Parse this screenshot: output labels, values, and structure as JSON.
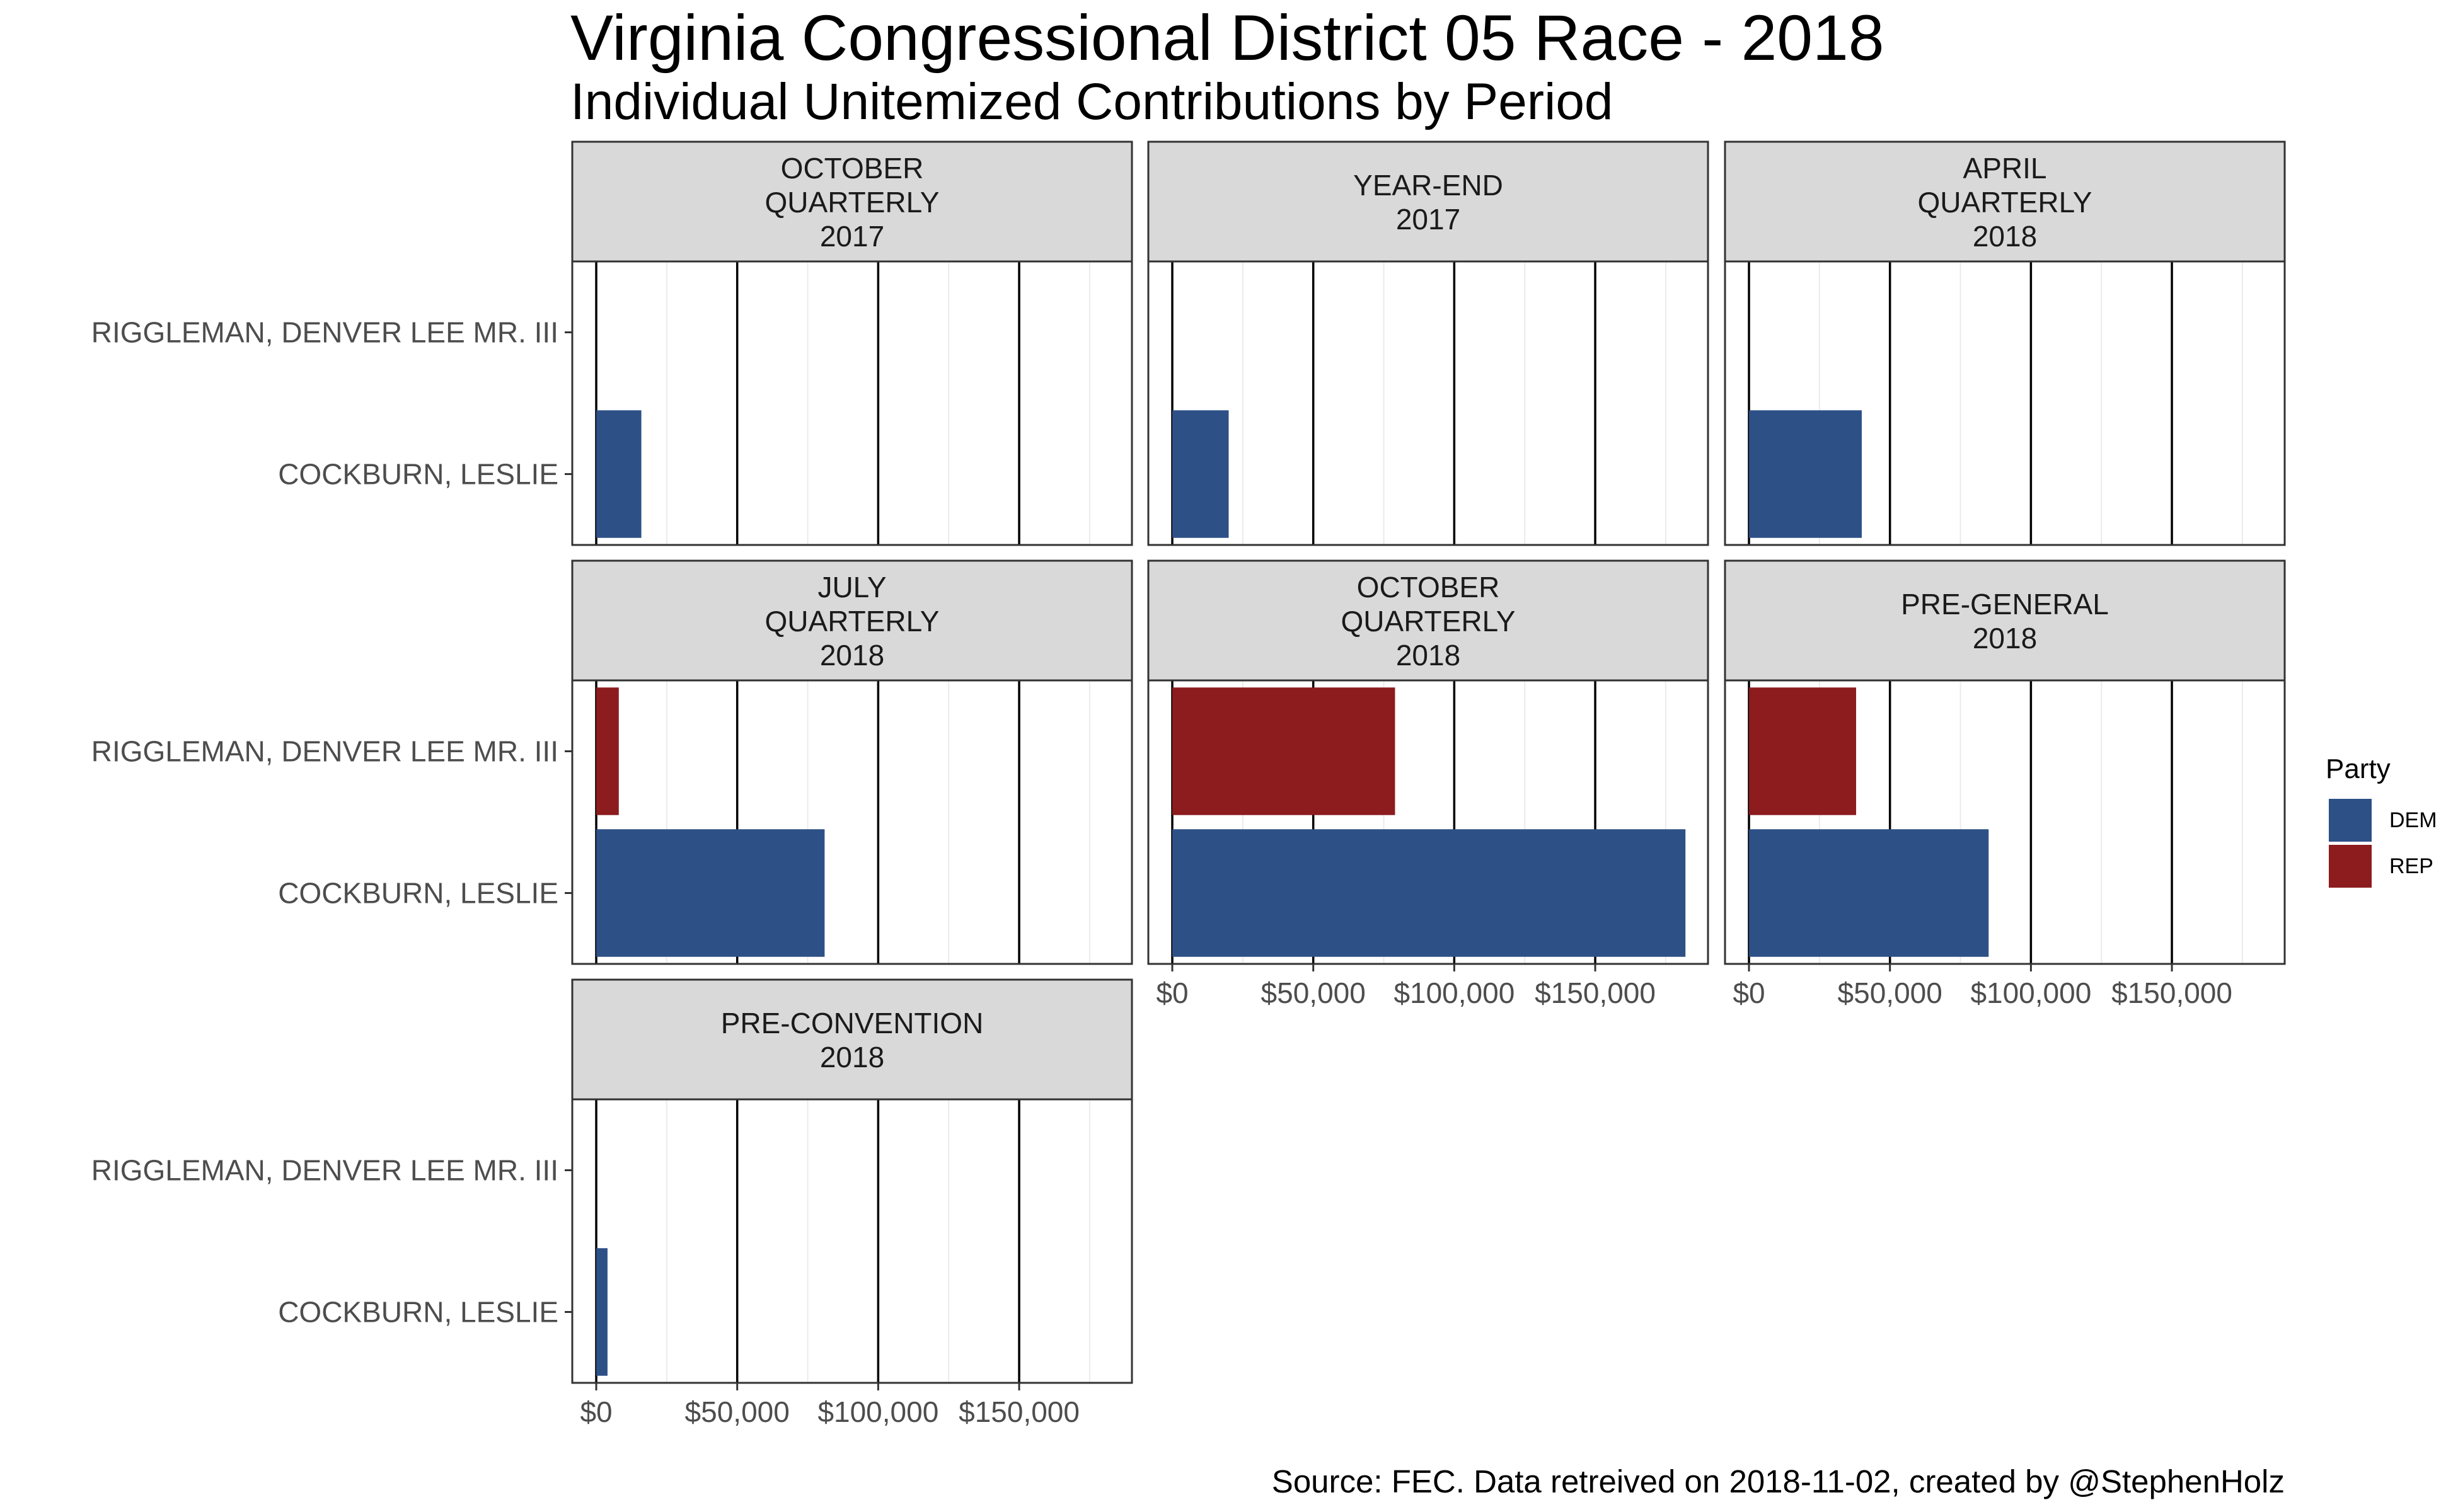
{
  "title": "Virginia Congressional District 05 Race - 2018",
  "subtitle": "Individual Unitemized Contributions by Period",
  "caption": "Source: FEC. Data retreived on 2018-11-02, created by @StephenHolz",
  "colors": {
    "DEM": "#2d5086",
    "REP": "#8c1c1e",
    "strip_bg": "#d9d9d9",
    "grid_major": "#000000",
    "grid_minor": "#ebebeb"
  },
  "legend": {
    "title": "Party",
    "items": [
      {
        "key": "DEM",
        "label": "DEM"
      },
      {
        "key": "REP",
        "label": "REP"
      }
    ]
  },
  "chart_data": {
    "type": "bar",
    "orientation": "horizontal",
    "faceted": true,
    "categories": [
      "RIGGLEMAN, DENVER LEE MR. III",
      "COCKBURN, LESLIE"
    ],
    "category_party": {
      "RIGGLEMAN, DENVER LEE MR. III": "REP",
      "COCKBURN, LESLIE": "DEM"
    },
    "x_ticks": [
      0,
      50000,
      100000,
      150000
    ],
    "x_tick_labels": [
      "$0",
      "$50,000",
      "$100,000",
      "$150,000"
    ],
    "xlim": [
      -8500,
      190000
    ],
    "grid": true,
    "legend_position": "right",
    "panels": [
      {
        "title": [
          "OCTOBER",
          "QUARTERLY",
          "2017"
        ],
        "values": {
          "RIGGLEMAN, DENVER LEE MR. III": 0,
          "COCKBURN, LESLIE": 16000
        }
      },
      {
        "title": [
          "YEAR-END",
          "2017"
        ],
        "values": {
          "RIGGLEMAN, DENVER LEE MR. III": 0,
          "COCKBURN, LESLIE": 20000
        }
      },
      {
        "title": [
          "APRIL",
          "QUARTERLY",
          "2018"
        ],
        "values": {
          "RIGGLEMAN, DENVER LEE MR. III": 0,
          "COCKBURN, LESLIE": 40000
        }
      },
      {
        "title": [
          "JULY",
          "QUARTERLY",
          "2018"
        ],
        "values": {
          "RIGGLEMAN, DENVER LEE MR. III": 8000,
          "COCKBURN, LESLIE": 81000
        }
      },
      {
        "title": [
          "OCTOBER",
          "QUARTERLY",
          "2018"
        ],
        "values": {
          "RIGGLEMAN, DENVER LEE MR. III": 79000,
          "COCKBURN, LESLIE": 182000
        }
      },
      {
        "title": [
          "PRE-GENERAL",
          "2018"
        ],
        "values": {
          "RIGGLEMAN, DENVER LEE MR. III": 38000,
          "COCKBURN, LESLIE": 85000
        }
      },
      {
        "title": [
          "PRE-CONVENTION",
          "2018"
        ],
        "values": {
          "RIGGLEMAN, DENVER LEE MR. III": 0,
          "COCKBURN, LESLIE": 4000
        }
      }
    ]
  }
}
